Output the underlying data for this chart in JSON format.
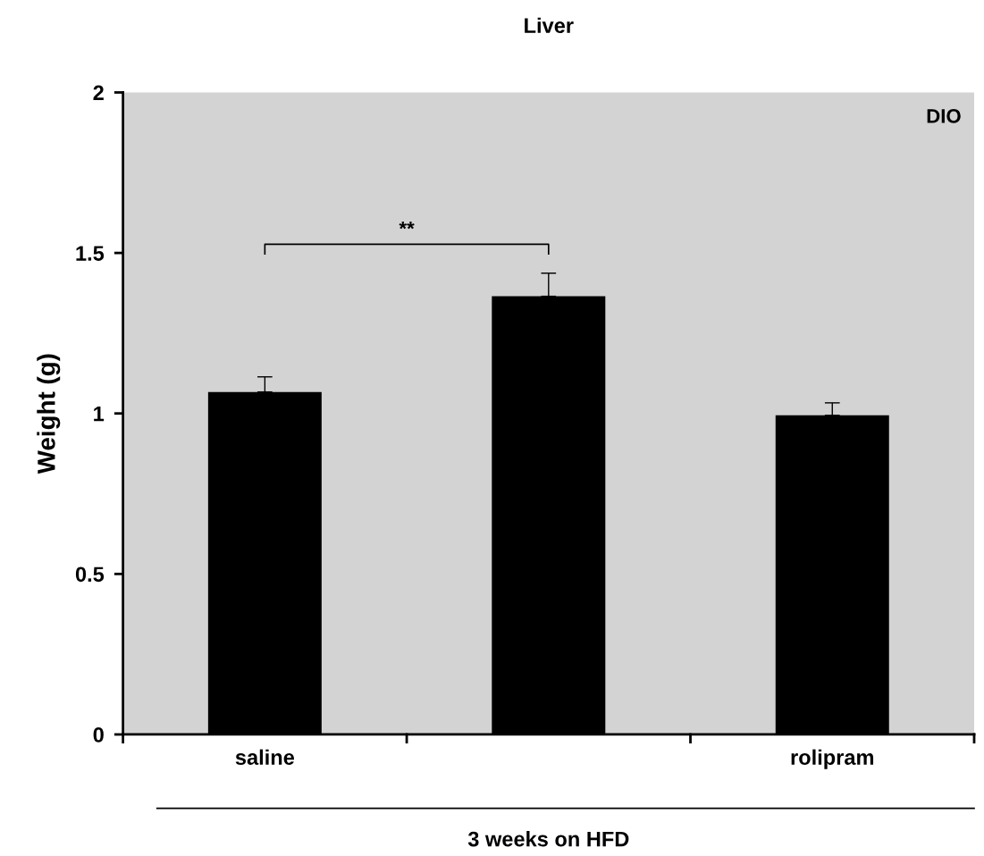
{
  "chart_data": {
    "type": "bar",
    "title": "Liver",
    "ylabel": "Weight (g)",
    "xlabel": "3 weeks on HFD",
    "categories": [
      "saline",
      null,
      "rolipram"
    ],
    "values": [
      1.067,
      1.365,
      0.994
    ],
    "errors": [
      [
        1.067,
        1.114
      ],
      [
        1.365,
        1.437
      ],
      [
        0.994,
        1.033
      ]
    ],
    "color": "#000000",
    "ylim": [
      0,
      2
    ],
    "yticks": [
      0,
      0.5,
      1,
      1.5,
      2
    ],
    "annotations": [
      "DIO",
      "**"
    ],
    "grid": false
  }
}
